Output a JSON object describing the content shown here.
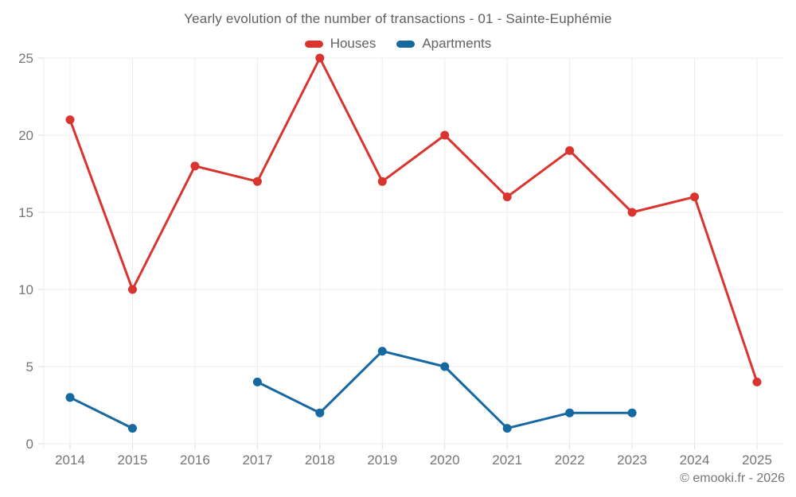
{
  "chart_data": {
    "type": "line",
    "title": "Yearly evolution of the number of transactions - 01 - Sainte-Euphémie",
    "categories": [
      "2014",
      "2015",
      "2016",
      "2017",
      "2018",
      "2019",
      "2020",
      "2021",
      "2022",
      "2023",
      "2024",
      "2025"
    ],
    "series": [
      {
        "name": "Houses",
        "color": "#d9342e",
        "values": [
          21,
          10,
          18,
          17,
          25,
          17,
          20,
          16,
          19,
          15,
          16,
          4
        ]
      },
      {
        "name": "Apartments",
        "color": "#1569a0",
        "values": [
          3,
          1,
          null,
          4,
          2,
          6,
          5,
          1,
          2,
          2,
          null,
          null
        ]
      }
    ],
    "xlabel": "",
    "ylabel": "",
    "ylim": [
      0,
      25
    ],
    "yticks": [
      0,
      5,
      10,
      15,
      20,
      25
    ],
    "grid": "on",
    "legend_position": "top",
    "footer": "© emooki.fr - 2026",
    "colors": {
      "gridline": "#ececec",
      "tick": "#dcdcdc",
      "axis_label": "#757575",
      "title_text": "#5f5f5f",
      "legend_text": "#616161",
      "background": "#ffffff"
    }
  }
}
